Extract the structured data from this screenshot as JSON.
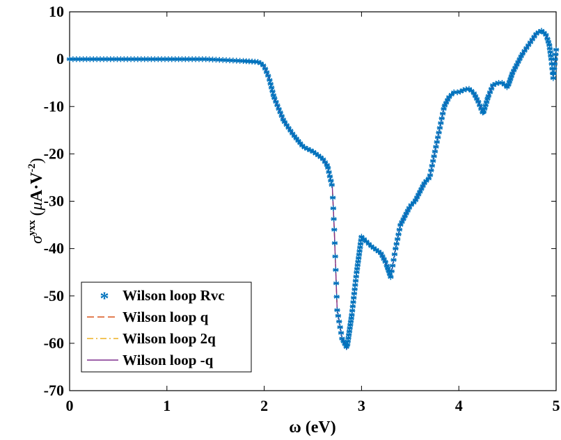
{
  "chart_data": {
    "type": "line",
    "xlabel": "ω (eV)",
    "ylabel": {
      "symbol": "σ",
      "superscript": "yxx",
      "unit_open": " (",
      "unit_mu": "μ",
      "unit_text": "A·V",
      "unit_exp": "-2",
      "unit_close": ")"
    },
    "xlim": [
      0,
      5
    ],
    "ylim": [
      -70,
      10
    ],
    "xticks": [
      "0",
      "1",
      "2",
      "3",
      "4",
      "5"
    ],
    "yticks": [
      "10",
      "0",
      "-10",
      "-20",
      "-30",
      "-40",
      "-50",
      "-60",
      "-70"
    ],
    "grid": false,
    "legend_position": "bottom-left",
    "series": [
      {
        "name": "Wilson loop Rvc",
        "style": "asterisk-markers",
        "color": "#0072bd"
      },
      {
        "name": "Wilson loop q",
        "style": "dashed",
        "color": "#d95319"
      },
      {
        "name": "Wilson loop 2q",
        "style": "dash-dot",
        "color": "#edb120"
      },
      {
        "name": "Wilson loop -q",
        "style": "solid",
        "color": "#7e2f8e"
      }
    ],
    "curve": {
      "x": [
        0,
        0.5,
        1.0,
        1.4,
        1.6,
        1.8,
        1.95,
        2.0,
        2.05,
        2.1,
        2.15,
        2.2,
        2.3,
        2.4,
        2.5,
        2.6,
        2.65,
        2.7,
        2.72,
        2.75,
        2.8,
        2.85,
        2.9,
        2.95,
        3.0,
        3.05,
        3.1,
        3.2,
        3.25,
        3.3,
        3.35,
        3.4,
        3.45,
        3.5,
        3.55,
        3.6,
        3.65,
        3.7,
        3.75,
        3.8,
        3.85,
        3.9,
        3.95,
        4.0,
        4.05,
        4.1,
        4.15,
        4.2,
        4.25,
        4.3,
        4.35,
        4.4,
        4.45,
        4.5,
        4.55,
        4.6,
        4.65,
        4.7,
        4.75,
        4.8,
        4.85,
        4.88,
        4.9,
        4.93,
        4.95,
        4.97,
        5.0
      ],
      "y": [
        0,
        0,
        0,
        0,
        -0.2,
        -0.4,
        -0.6,
        -1.5,
        -4,
        -8,
        -10.5,
        -13,
        -16,
        -18.5,
        -19.5,
        -21,
        -22.5,
        -27,
        -36,
        -53,
        -59,
        -61,
        -54,
        -45,
        -37.5,
        -38.5,
        -39.5,
        -41,
        -43,
        -46,
        -40,
        -35,
        -33,
        -31,
        -30,
        -28,
        -26,
        -25,
        -20,
        -15,
        -10,
        -8,
        -7,
        -7,
        -6.5,
        -6.2,
        -7,
        -9,
        -11.5,
        -8,
        -5.5,
        -5,
        -5,
        -6,
        -3,
        -1,
        1,
        2.5,
        4,
        5.5,
        6,
        5.5,
        5,
        3,
        0,
        -4,
        2
      ]
    }
  }
}
